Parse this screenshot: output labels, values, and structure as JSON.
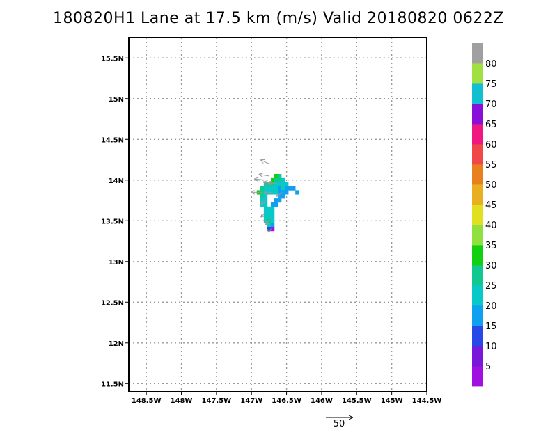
{
  "title": "180820H1 Lane at 17.5 km (m/s) Valid 20180820 0622Z",
  "chart_data": {
    "type": "heatmap",
    "title": "180820H1 Lane at 17.5 km (m/s) Valid 20180820 0622Z",
    "xlabel": "",
    "ylabel": "",
    "xlim": [
      -148.75,
      -144.5
    ],
    "ylim": [
      11.4,
      15.75
    ],
    "x_ticks": [
      -148.5,
      -148,
      -147.5,
      -147,
      -146.5,
      -146,
      -145.5,
      -145,
      -144.5
    ],
    "x_tick_labels": [
      "148.5W",
      "148W",
      "147.5W",
      "147W",
      "146.5W",
      "146W",
      "145.5W",
      "145W",
      "144.5W"
    ],
    "y_ticks": [
      11.5,
      12,
      12.5,
      13,
      13.5,
      14,
      14.5,
      15,
      15.5
    ],
    "y_tick_labels": [
      "11.5N",
      "12N",
      "12.5N",
      "13N",
      "13.5N",
      "14N",
      "14.5N",
      "15N",
      "15.5N"
    ],
    "grid": true,
    "colorbar": {
      "levels": [
        0,
        5,
        10,
        15,
        20,
        25,
        30,
        35,
        40,
        45,
        50,
        55,
        60,
        65,
        70,
        75,
        80,
        85
      ],
      "labels": [
        "5",
        "10",
        "15",
        "20",
        "25",
        "30",
        "35",
        "40",
        "45",
        "50",
        "55",
        "60",
        "65",
        "70",
        "75",
        "80"
      ],
      "colors": [
        "#a010e0",
        "#7818d8",
        "#2848e8",
        "#10a0f0",
        "#08c8c8",
        "#10c890",
        "#10d010",
        "#90e040",
        "#e0e020",
        "#e8b020",
        "#e88020",
        "#f04848",
        "#f01880",
        "#8810d8",
        "#10c0d0",
        "#a0e040",
        "#a0a0a0"
      ]
    },
    "cell_size_deg": 0.05,
    "cells": [
      {
        "lon": -146.65,
        "lat": 14.05,
        "v": 30
      },
      {
        "lon": -146.6,
        "lat": 14.05,
        "v": 28
      },
      {
        "lon": -146.7,
        "lat": 14.0,
        "v": 30
      },
      {
        "lon": -146.65,
        "lat": 14.0,
        "v": 27
      },
      {
        "lon": -146.6,
        "lat": 14.0,
        "v": 25
      },
      {
        "lon": -146.55,
        "lat": 14.0,
        "v": 22
      },
      {
        "lon": -146.8,
        "lat": 13.95,
        "v": 28
      },
      {
        "lon": -146.75,
        "lat": 13.95,
        "v": 26
      },
      {
        "lon": -146.7,
        "lat": 13.95,
        "v": 25
      },
      {
        "lon": -146.65,
        "lat": 13.95,
        "v": 22
      },
      {
        "lon": -146.6,
        "lat": 13.95,
        "v": 20
      },
      {
        "lon": -146.55,
        "lat": 13.95,
        "v": 20
      },
      {
        "lon": -146.5,
        "lat": 13.95,
        "v": 22
      },
      {
        "lon": -146.85,
        "lat": 13.9,
        "v": 26
      },
      {
        "lon": -146.8,
        "lat": 13.9,
        "v": 24
      },
      {
        "lon": -146.75,
        "lat": 13.9,
        "v": 22
      },
      {
        "lon": -146.7,
        "lat": 13.9,
        "v": 20
      },
      {
        "lon": -146.65,
        "lat": 13.9,
        "v": 22
      },
      {
        "lon": -146.6,
        "lat": 13.9,
        "v": 18
      },
      {
        "lon": -146.55,
        "lat": 13.9,
        "v": 20
      },
      {
        "lon": -146.5,
        "lat": 13.9,
        "v": 18
      },
      {
        "lon": -146.45,
        "lat": 13.9,
        "v": 18
      },
      {
        "lon": -146.4,
        "lat": 13.9,
        "v": 16
      },
      {
        "lon": -146.9,
        "lat": 13.85,
        "v": 30
      },
      {
        "lon": -146.85,
        "lat": 13.85,
        "v": 26
      },
      {
        "lon": -146.8,
        "lat": 13.85,
        "v": 24
      },
      {
        "lon": -146.75,
        "lat": 13.85,
        "v": 22
      },
      {
        "lon": -146.7,
        "lat": 13.85,
        "v": 22
      },
      {
        "lon": -146.65,
        "lat": 13.85,
        "v": 20
      },
      {
        "lon": -146.6,
        "lat": 13.85,
        "v": 18
      },
      {
        "lon": -146.55,
        "lat": 13.85,
        "v": 18
      },
      {
        "lon": -146.5,
        "lat": 13.85,
        "v": 16
      },
      {
        "lon": -146.35,
        "lat": 13.85,
        "v": 15
      },
      {
        "lon": -146.85,
        "lat": 13.8,
        "v": 25
      },
      {
        "lon": -146.8,
        "lat": 13.8,
        "v": 22
      },
      {
        "lon": -146.6,
        "lat": 13.8,
        "v": 18
      },
      {
        "lon": -146.55,
        "lat": 13.8,
        "v": 16
      },
      {
        "lon": -146.85,
        "lat": 13.75,
        "v": 24
      },
      {
        "lon": -146.8,
        "lat": 13.75,
        "v": 22
      },
      {
        "lon": -146.65,
        "lat": 13.75,
        "v": 18
      },
      {
        "lon": -146.6,
        "lat": 13.75,
        "v": 16
      },
      {
        "lon": -146.85,
        "lat": 13.7,
        "v": 24
      },
      {
        "lon": -146.8,
        "lat": 13.7,
        "v": 22
      },
      {
        "lon": -146.7,
        "lat": 13.7,
        "v": 18
      },
      {
        "lon": -146.65,
        "lat": 13.7,
        "v": 16
      },
      {
        "lon": -146.8,
        "lat": 13.65,
        "v": 22
      },
      {
        "lon": -146.75,
        "lat": 13.65,
        "v": 24
      },
      {
        "lon": -146.7,
        "lat": 13.65,
        "v": 22
      },
      {
        "lon": -146.8,
        "lat": 13.6,
        "v": 24
      },
      {
        "lon": -146.75,
        "lat": 13.6,
        "v": 22
      },
      {
        "lon": -146.7,
        "lat": 13.6,
        "v": 20
      },
      {
        "lon": -146.8,
        "lat": 13.55,
        "v": 22
      },
      {
        "lon": -146.75,
        "lat": 13.55,
        "v": 24
      },
      {
        "lon": -146.7,
        "lat": 13.55,
        "v": 22
      },
      {
        "lon": -146.8,
        "lat": 13.5,
        "v": 24
      },
      {
        "lon": -146.75,
        "lat": 13.5,
        "v": 26
      },
      {
        "lon": -146.7,
        "lat": 13.5,
        "v": 24
      },
      {
        "lon": -146.75,
        "lat": 13.45,
        "v": 22
      },
      {
        "lon": -146.7,
        "lat": 13.45,
        "v": 18
      },
      {
        "lon": -146.75,
        "lat": 13.4,
        "v": 10
      },
      {
        "lon": -146.7,
        "lat": 13.4,
        "v": 3
      }
    ],
    "vectors": [
      {
        "lon": -146.75,
        "lat": 14.2,
        "u": -15,
        "v": 7
      },
      {
        "lon": -146.8,
        "lat": 14.0,
        "u": -20,
        "v": 2
      },
      {
        "lon": -146.75,
        "lat": 14.05,
        "u": -18,
        "v": 3
      },
      {
        "lon": -146.7,
        "lat": 13.95,
        "u": -17,
        "v": 4
      },
      {
        "lon": -146.6,
        "lat": 13.95,
        "u": -22,
        "v": 3
      },
      {
        "lon": -146.85,
        "lat": 13.85,
        "u": -20,
        "v": 0
      },
      {
        "lon": -146.7,
        "lat": 13.85,
        "u": -16,
        "v": -1
      },
      {
        "lon": -146.55,
        "lat": 13.85,
        "u": -12,
        "v": -7
      },
      {
        "lon": -146.8,
        "lat": 13.75,
        "u": -8,
        "v": -6
      },
      {
        "lon": -146.8,
        "lat": 13.6,
        "u": -8,
        "v": -8
      },
      {
        "lon": -146.75,
        "lat": 13.5,
        "u": -7,
        "v": -7
      },
      {
        "lon": -146.75,
        "lat": 13.42,
        "u": 0,
        "v": -9
      }
    ],
    "reference_vector": {
      "label": "50",
      "magnitude": 50
    }
  }
}
